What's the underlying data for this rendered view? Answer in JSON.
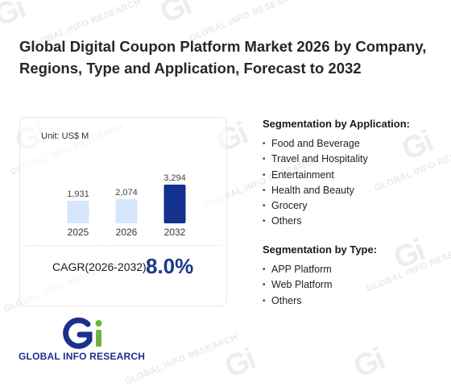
{
  "title": "Global Digital Coupon Platform Market 2026 by Company, Regions, Type and Application, Forecast to 2032",
  "watermark": {
    "text": "GLOBAL INFO RESEARCH",
    "logo": "Gi"
  },
  "unit": "Unit: US$ M",
  "chart_data": {
    "type": "bar",
    "categories": [
      "2025",
      "2026",
      "2032"
    ],
    "values": [
      1931,
      2074,
      3294
    ],
    "value_labels": [
      "1,931",
      "2,074",
      "3,294"
    ],
    "ylabel": "Unit: US$ M",
    "colors": [
      "#d6e6fb",
      "#d6e6fb",
      "#13318f"
    ],
    "grid": false
  },
  "cagr": {
    "label": "CAGR(2026-2032):",
    "value": "8.0%"
  },
  "segmentation_application": {
    "title": "Segmentation by Application:",
    "items": [
      "Food and Beverage",
      "Travel and Hospitality",
      "Entertainment",
      "Health and Beauty",
      "Grocery",
      "Others"
    ]
  },
  "segmentation_type": {
    "title": "Segmentation by Type:",
    "items": [
      "APP Platform",
      "Web Platform",
      "Others"
    ]
  },
  "logo": {
    "text": "GLOBAL INFO RESEARCH",
    "icon": "gi-logo-icon",
    "colors": {
      "blue": "#1b2f8c",
      "green": "#6db33f"
    }
  }
}
